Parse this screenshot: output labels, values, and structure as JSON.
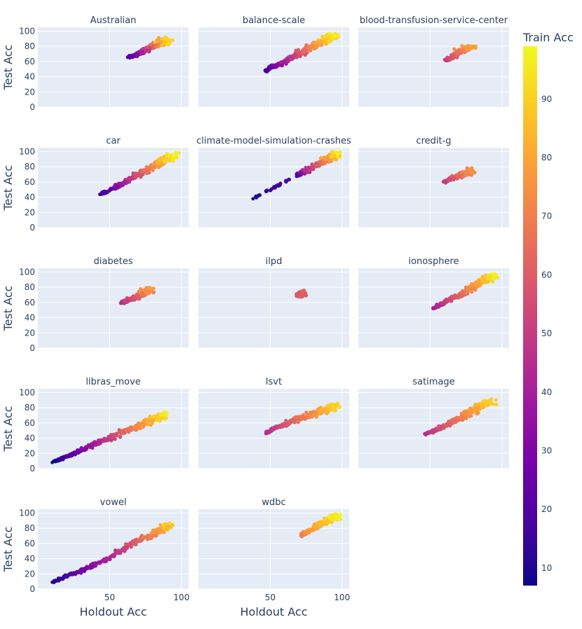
{
  "chart_data": {
    "type": "scatter",
    "xlabel": "Holdout Acc",
    "ylabel": "Test Acc",
    "xlim": [
      0,
      105
    ],
    "ylim": [
      0,
      105
    ],
    "x_ticks": [
      50,
      100
    ],
    "y_ticks": [
      0,
      20,
      40,
      60,
      80,
      100
    ],
    "grid": true,
    "colorbar": {
      "title": "Train Acc",
      "range": [
        7,
        99
      ],
      "ticks": [
        10,
        20,
        30,
        40,
        50,
        60,
        70,
        80,
        90
      ],
      "colorscale": "plasma"
    },
    "panels": [
      {
        "title": "Australian",
        "points": [
          [
            63,
            66
          ],
          [
            67,
            67
          ],
          [
            70,
            70
          ],
          [
            73,
            73
          ],
          [
            76,
            75
          ],
          [
            78,
            78
          ],
          [
            80,
            80
          ],
          [
            82,
            82
          ],
          [
            84,
            83
          ],
          [
            86,
            85
          ],
          [
            88,
            86
          ],
          [
            90,
            87
          ]
        ],
        "train": [
          20,
          92
        ]
      },
      {
        "title": "balance-scale",
        "points": [
          [
            47,
            47
          ],
          [
            50,
            52
          ],
          [
            55,
            55
          ],
          [
            60,
            60
          ],
          [
            65,
            65
          ],
          [
            70,
            70
          ],
          [
            75,
            75
          ],
          [
            80,
            80
          ],
          [
            85,
            85
          ],
          [
            90,
            90
          ],
          [
            95,
            94
          ]
        ],
        "train": [
          15,
          98
        ]
      },
      {
        "title": "blood-transfusion-service-center",
        "points": [
          [
            61,
            61
          ],
          [
            64,
            64
          ],
          [
            67,
            68
          ],
          [
            70,
            72
          ],
          [
            73,
            75
          ],
          [
            76,
            78
          ],
          [
            78,
            80
          ]
        ],
        "train": [
          50,
          80
        ]
      },
      {
        "title": "car",
        "points": [
          [
            44,
            44
          ],
          [
            50,
            49
          ],
          [
            55,
            54
          ],
          [
            60,
            59
          ],
          [
            65,
            65
          ],
          [
            70,
            70
          ],
          [
            75,
            75
          ],
          [
            80,
            80
          ],
          [
            85,
            85
          ],
          [
            90,
            91
          ],
          [
            94,
            95
          ]
        ],
        "train": [
          15,
          98
        ]
      },
      {
        "title": "climate-model-simulation-crashes",
        "points": [
          [
            38,
            38
          ],
          [
            69,
            69
          ],
          [
            72,
            72
          ],
          [
            75,
            75
          ],
          [
            80,
            80
          ],
          [
            85,
            86
          ],
          [
            90,
            90
          ],
          [
            95,
            95
          ],
          [
            97,
            97
          ]
        ],
        "train": [
          10,
          98
        ]
      },
      {
        "title": "credit-g",
        "points": [
          [
            60,
            60
          ],
          [
            64,
            64
          ],
          [
            67,
            66
          ],
          [
            70,
            68
          ],
          [
            73,
            70
          ],
          [
            76,
            72
          ],
          [
            78,
            74
          ]
        ],
        "train": [
          50,
          75
        ]
      },
      {
        "title": "diabetes",
        "points": [
          [
            58,
            59
          ],
          [
            62,
            62
          ],
          [
            66,
            66
          ],
          [
            70,
            69
          ],
          [
            73,
            72
          ],
          [
            76,
            75
          ],
          [
            78,
            78
          ]
        ],
        "train": [
          45,
          78
        ]
      },
      {
        "title": "ilpd",
        "points": [
          [
            70,
            71
          ],
          [
            71,
            72
          ],
          [
            72,
            71
          ],
          [
            71,
            70
          ],
          [
            72,
            73
          ]
        ],
        "train": [
          55,
          62
        ]
      },
      {
        "title": "ionosphere",
        "points": [
          [
            52,
            52
          ],
          [
            58,
            58
          ],
          [
            63,
            63
          ],
          [
            68,
            68
          ],
          [
            73,
            73
          ],
          [
            78,
            78
          ],
          [
            83,
            85
          ],
          [
            88,
            90
          ],
          [
            92,
            94
          ],
          [
            95,
            96
          ]
        ],
        "train": [
          40,
          98
        ]
      },
      {
        "title": "libras_move",
        "points": [
          [
            10,
            8
          ],
          [
            18,
            14
          ],
          [
            25,
            20
          ],
          [
            32,
            26
          ],
          [
            40,
            33
          ],
          [
            48,
            38
          ],
          [
            55,
            44
          ],
          [
            62,
            50
          ],
          [
            70,
            56
          ],
          [
            77,
            62
          ],
          [
            84,
            68
          ],
          [
            90,
            72
          ]
        ],
        "train": [
          7,
          98
        ]
      },
      {
        "title": "lsvt",
        "points": [
          [
            47,
            46
          ],
          [
            53,
            54
          ],
          [
            58,
            56
          ],
          [
            64,
            62
          ],
          [
            70,
            66
          ],
          [
            76,
            70
          ],
          [
            82,
            73
          ],
          [
            88,
            77
          ],
          [
            92,
            80
          ],
          [
            94,
            82
          ]
        ],
        "train": [
          45,
          92
        ]
      },
      {
        "title": "satimage",
        "points": [
          [
            47,
            46
          ],
          [
            52,
            49
          ],
          [
            57,
            53
          ],
          [
            62,
            58
          ],
          [
            67,
            63
          ],
          [
            72,
            68
          ],
          [
            77,
            73
          ],
          [
            82,
            78
          ],
          [
            87,
            84
          ],
          [
            92,
            90
          ]
        ],
        "train": [
          45,
          90
        ]
      },
      {
        "title": "vowel",
        "points": [
          [
            10,
            9
          ],
          [
            20,
            17
          ],
          [
            30,
            24
          ],
          [
            40,
            33
          ],
          [
            50,
            41
          ],
          [
            60,
            53
          ],
          [
            67,
            62
          ],
          [
            75,
            68
          ],
          [
            83,
            75
          ],
          [
            90,
            82
          ],
          [
            92,
            86
          ]
        ],
        "train": [
          10,
          92
        ]
      },
      {
        "title": "wdbc",
        "points": [
          [
            72,
            71
          ],
          [
            75,
            74
          ],
          [
            80,
            79
          ],
          [
            85,
            86
          ],
          [
            90,
            90
          ],
          [
            94,
            94
          ],
          [
            97,
            95
          ]
        ],
        "train": [
          70,
          98
        ]
      }
    ]
  }
}
